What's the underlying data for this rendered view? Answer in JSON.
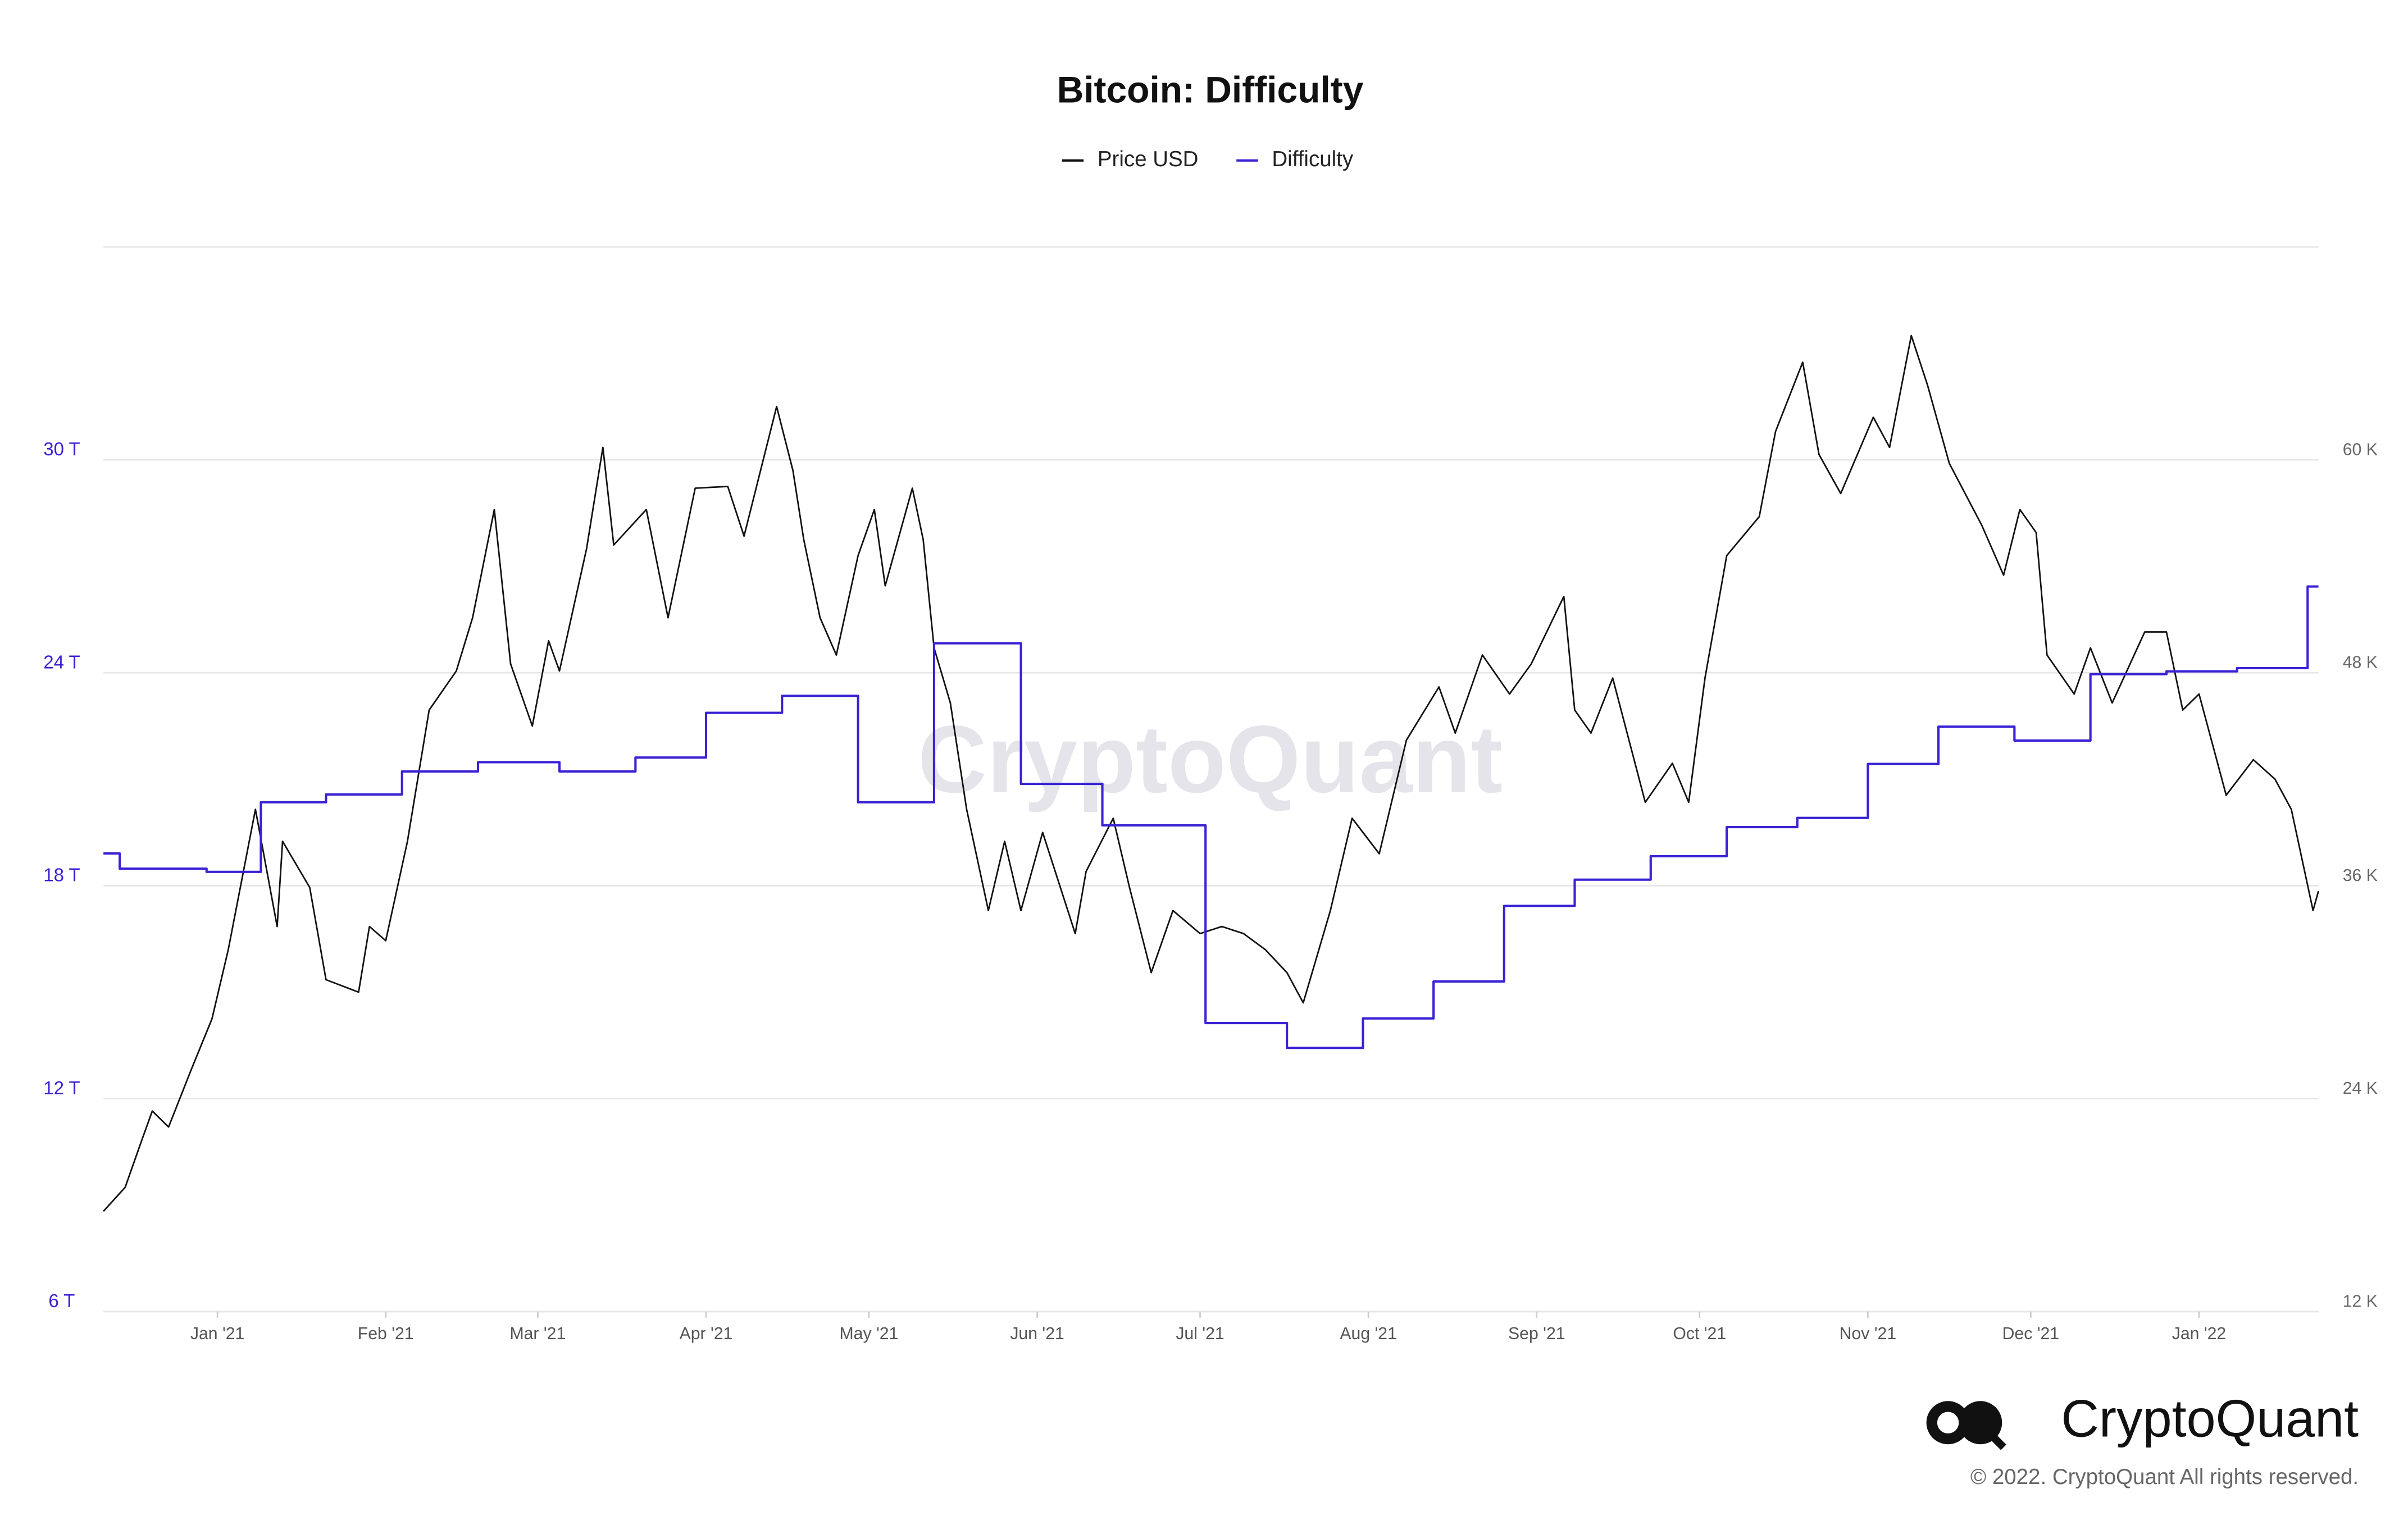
{
  "chart_data": {
    "type": "line",
    "title": "Bitcoin: Difficulty",
    "watermark": "CryptoQuant",
    "brand": "CryptoQuant",
    "copyright": "© 2022. CryptoQuant All rights reserved.",
    "legend": "top",
    "grid": true,
    "xlim": [
      "2020-12-11",
      "2022-01-23"
    ],
    "xticks": [
      {
        "value": "2021-01-01",
        "label": "Jan '21"
      },
      {
        "value": "2021-02-01",
        "label": "Feb '21"
      },
      {
        "value": "2021-03-01",
        "label": "Mar '21"
      },
      {
        "value": "2021-04-01",
        "label": "Apr '21"
      },
      {
        "value": "2021-05-01",
        "label": "May '21"
      },
      {
        "value": "2021-06-01",
        "label": "Jun '21"
      },
      {
        "value": "2021-07-01",
        "label": "Jul '21"
      },
      {
        "value": "2021-08-01",
        "label": "Aug '21"
      },
      {
        "value": "2021-09-01",
        "label": "Sep '21"
      },
      {
        "value": "2021-10-01",
        "label": "Oct '21"
      },
      {
        "value": "2021-11-01",
        "label": "Nov '21"
      },
      {
        "value": "2021-12-01",
        "label": "Dec '21"
      },
      {
        "value": "2022-01-01",
        "label": "Jan '22"
      }
    ],
    "ylim": [
      6,
      36
    ],
    "yticks": [
      {
        "value": 6,
        "label": "6 T"
      },
      {
        "value": 12,
        "label": "12 T"
      },
      {
        "value": 18,
        "label": "18 T"
      },
      {
        "value": 24,
        "label": "24 T"
      },
      {
        "value": 30,
        "label": "30 T"
      }
    ],
    "y2lim": [
      12000,
      72000
    ],
    "y2ticks": [
      {
        "value": 12000,
        "label": "12 K"
      },
      {
        "value": 24000,
        "label": "24 K"
      },
      {
        "value": 36000,
        "label": "36 K"
      },
      {
        "value": 48000,
        "label": "48 K"
      },
      {
        "value": 60000,
        "label": "60 K"
      }
    ],
    "series": [
      {
        "name": "Price USD",
        "color": "#111111",
        "axis": "y2",
        "x": [
          "2020-12-11",
          "2020-12-15",
          "2020-12-18",
          "2020-12-20",
          "2020-12-23",
          "2020-12-27",
          "2020-12-31",
          "2021-01-03",
          "2021-01-08",
          "2021-01-12",
          "2021-01-13",
          "2021-01-18",
          "2021-01-21",
          "2021-01-27",
          "2021-01-29",
          "2021-02-01",
          "2021-02-05",
          "2021-02-09",
          "2021-02-14",
          "2021-02-17",
          "2021-02-21",
          "2021-02-24",
          "2021-02-28",
          "2021-03-03",
          "2021-03-05",
          "2021-03-10",
          "2021-03-13",
          "2021-03-15",
          "2021-03-21",
          "2021-03-25",
          "2021-03-30",
          "2021-04-05",
          "2021-04-08",
          "2021-04-14",
          "2021-04-17",
          "2021-04-19",
          "2021-04-22",
          "2021-04-25",
          "2021-04-29",
          "2021-05-02",
          "2021-05-04",
          "2021-05-09",
          "2021-05-11",
          "2021-05-13",
          "2021-05-16",
          "2021-05-19",
          "2021-05-23",
          "2021-05-26",
          "2021-05-29",
          "2021-06-02",
          "2021-06-08",
          "2021-06-10",
          "2021-06-15",
          "2021-06-18",
          "2021-06-22",
          "2021-06-26",
          "2021-07-01",
          "2021-07-05",
          "2021-07-09",
          "2021-07-13",
          "2021-07-17",
          "2021-07-20",
          "2021-07-25",
          "2021-07-29",
          "2021-08-03",
          "2021-08-08",
          "2021-08-14",
          "2021-08-17",
          "2021-08-22",
          "2021-08-27",
          "2021-08-31",
          "2021-09-06",
          "2021-09-08",
          "2021-09-11",
          "2021-09-15",
          "2021-09-21",
          "2021-09-26",
          "2021-09-29",
          "2021-10-02",
          "2021-10-06",
          "2021-10-12",
          "2021-10-15",
          "2021-10-20",
          "2021-10-23",
          "2021-10-27",
          "2021-11-02",
          "2021-11-05",
          "2021-11-09",
          "2021-11-12",
          "2021-11-16",
          "2021-11-22",
          "2021-11-26",
          "2021-11-29",
          "2021-12-02",
          "2021-12-04",
          "2021-12-09",
          "2021-12-12",
          "2021-12-16",
          "2021-12-22",
          "2021-12-26",
          "2021-12-29",
          "2022-01-01",
          "2022-01-06",
          "2022-01-11",
          "2022-01-15",
          "2022-01-18",
          "2022-01-22",
          "2022-01-23"
        ],
        "values": [
          17650,
          19000,
          21600,
          23300,
          22400,
          25500,
          28500,
          32400,
          40300,
          33700,
          38500,
          35900,
          30700,
          30000,
          33700,
          32900,
          38500,
          45900,
          48100,
          51100,
          57200,
          48500,
          45000,
          49800,
          48100,
          55000,
          60700,
          55200,
          57200,
          51100,
          58400,
          58500,
          55700,
          63000,
          59400,
          55500,
          51100,
          49000,
          54600,
          57200,
          52900,
          58400,
          55500,
          49400,
          46300,
          40300,
          34600,
          38500,
          34600,
          39000,
          33300,
          36800,
          39800,
          35900,
          31100,
          34600,
          33300,
          33700,
          33300,
          32400,
          31100,
          29400,
          34600,
          39800,
          37800,
          44200,
          47200,
          44600,
          49000,
          46800,
          48500,
          52300,
          45900,
          44600,
          47700,
          40700,
          42900,
          40700,
          47700,
          54600,
          56800,
          61600,
          65500,
          60300,
          58100,
          62400,
          60700,
          67000,
          64200,
          59800,
          56300,
          53500,
          57200,
          55900,
          49000,
          46800,
          49400,
          46300,
          50300,
          50300,
          45900,
          46800,
          41100,
          43100,
          42000,
          40300,
          34600,
          35700
        ]
      },
      {
        "name": "Difficulty",
        "color": "#3a22d4",
        "step": true,
        "x": [
          "2020-12-11",
          "2020-12-14",
          "2020-12-30",
          "2021-01-09",
          "2021-01-21",
          "2021-02-04",
          "2021-02-18",
          "2021-03-05",
          "2021-03-19",
          "2021-04-01",
          "2021-04-15",
          "2021-04-29",
          "2021-05-13",
          "2021-05-29",
          "2021-06-13",
          "2021-07-02",
          "2021-07-17",
          "2021-07-31",
          "2021-08-13",
          "2021-08-26",
          "2021-09-08",
          "2021-09-22",
          "2021-10-06",
          "2021-10-19",
          "2021-11-01",
          "2021-11-14",
          "2021-11-28",
          "2021-12-12",
          "2021-12-26",
          "2022-01-08",
          "2022-01-21"
        ],
        "values": [
          18.91,
          18.48,
          18.39,
          20.35,
          20.57,
          21.22,
          21.48,
          21.22,
          21.61,
          22.87,
          23.35,
          20.35,
          24.83,
          20.87,
          19.7,
          14.13,
          13.43,
          14.26,
          15.3,
          17.43,
          18.17,
          18.83,
          19.65,
          19.91,
          21.43,
          22.48,
          22.09,
          23.96,
          24.04,
          24.13,
          26.43
        ]
      }
    ]
  }
}
